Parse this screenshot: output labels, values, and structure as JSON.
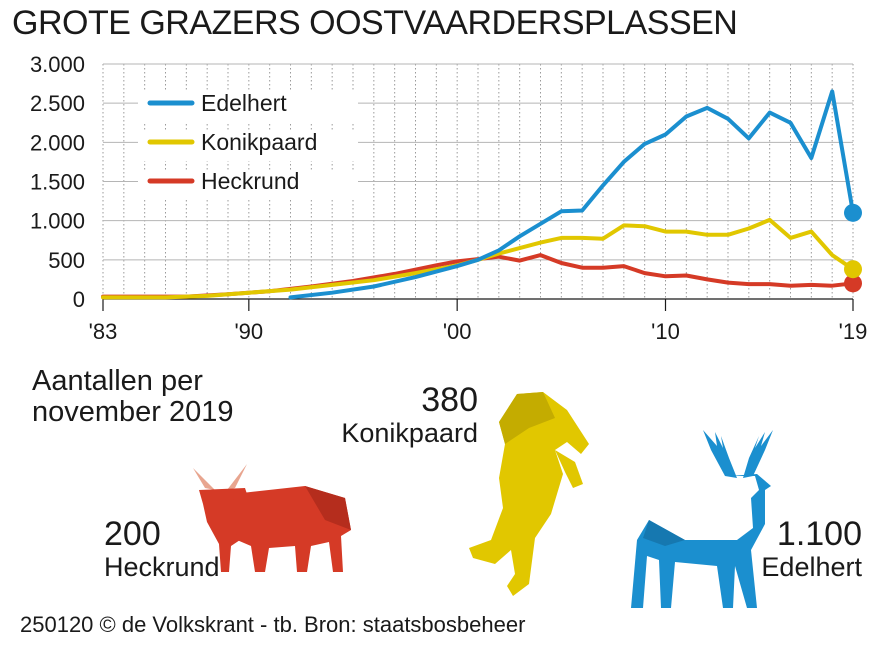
{
  "title": "GROTE GRAZERS OOSTVAARDERSPLASSEN",
  "chart_data": {
    "type": "line",
    "title": "GROTE GRAZERS OOSTVAARDERSPLASSEN",
    "xlim": [
      1983,
      2019
    ],
    "ylim": [
      0,
      3000
    ],
    "yticks": [
      0,
      500,
      1000,
      1500,
      2000,
      2500,
      3000
    ],
    "ytick_labels": [
      "0",
      "500",
      "1.000",
      "1.500",
      "2.000",
      "2.500",
      "3.000"
    ],
    "xticks": [
      1983,
      1990,
      2000,
      2010,
      2019
    ],
    "xtick_labels": [
      "'83",
      "'90",
      "'00",
      "'10",
      "'19"
    ],
    "grid": "vertical-dotted",
    "legend_position": "top-left",
    "series": [
      {
        "name": "Edelhert",
        "color": "#1b8fcf",
        "x": [
          1992,
          1994,
          1996,
          1998,
          2000,
          2001,
          2002,
          2003,
          2004,
          2005,
          2006,
          2007,
          2008,
          2009,
          2010,
          2011,
          2012,
          2013,
          2014,
          2015,
          2016,
          2017,
          2018,
          2019
        ],
        "values": [
          20,
          80,
          160,
          280,
          420,
          500,
          620,
          800,
          960,
          1120,
          1130,
          1450,
          1750,
          1980,
          2100,
          2330,
          2440,
          2300,
          2050,
          2380,
          2250,
          1800,
          2650,
          1100
        ]
      },
      {
        "name": "Konikpaard",
        "color": "#e1c700",
        "x": [
          1983,
          1986,
          1988,
          1990,
          1992,
          1994,
          1996,
          1998,
          2000,
          2001,
          2002,
          2003,
          2004,
          2005,
          2006,
          2007,
          2008,
          2009,
          2010,
          2011,
          2012,
          2013,
          2014,
          2015,
          2016,
          2017,
          2018,
          2019
        ],
        "values": [
          20,
          20,
          40,
          80,
          120,
          180,
          240,
          330,
          430,
          500,
          580,
          650,
          720,
          780,
          780,
          770,
          940,
          930,
          860,
          860,
          820,
          820,
          900,
          1010,
          780,
          860,
          560,
          380
        ]
      },
      {
        "name": "Heckrund",
        "color": "#d53a26",
        "x": [
          1983,
          1985,
          1987,
          1989,
          1991,
          1993,
          1995,
          1997,
          1999,
          2000,
          2001,
          2002,
          2003,
          2004,
          2005,
          2006,
          2007,
          2008,
          2009,
          2010,
          2011,
          2012,
          2013,
          2014,
          2015,
          2016,
          2017,
          2018,
          2019
        ],
        "values": [
          30,
          30,
          30,
          60,
          100,
          160,
          230,
          320,
          430,
          480,
          510,
          540,
          490,
          560,
          460,
          400,
          400,
          420,
          330,
          290,
          300,
          250,
          210,
          190,
          190,
          170,
          180,
          170,
          200
        ]
      }
    ]
  },
  "counts": {
    "title": "Aantallen per november 2019",
    "heckrund": {
      "value": "200",
      "label": "Heckrund",
      "color": "#d53a26"
    },
    "konikpaard": {
      "value": "380",
      "label": "Konikpaard",
      "color": "#e1c700"
    },
    "edelhert": {
      "value": "1.100",
      "label": "Edelhert",
      "color": "#1b8fcf"
    }
  },
  "footer": "250120 © de Volkskrant - tb. Bron: staatsbosbeheer"
}
